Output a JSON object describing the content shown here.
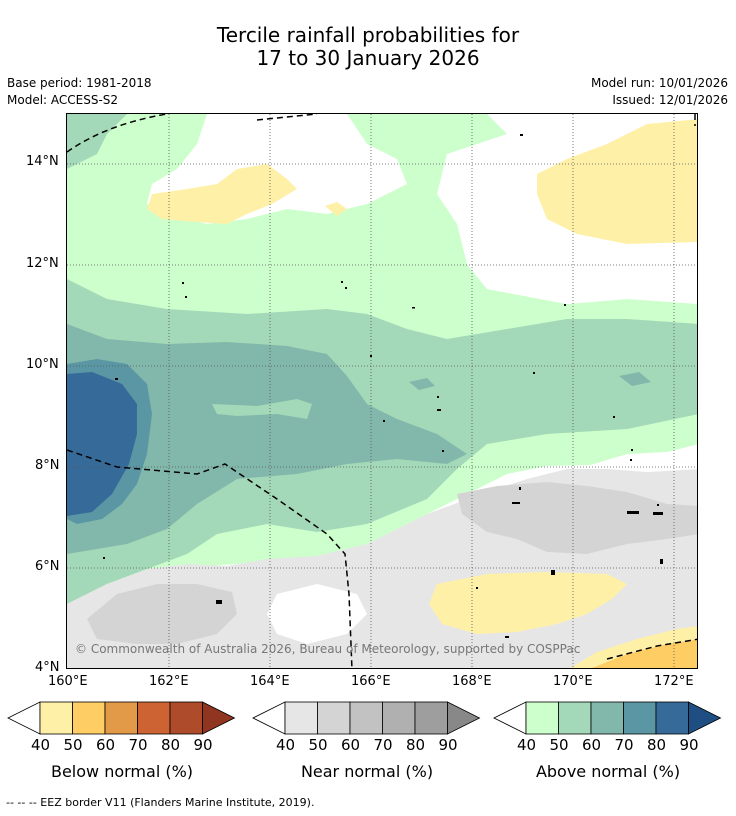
{
  "title": {
    "line1": "Tercile rainfall probabilities for",
    "line2": "17 to 30 January 2026"
  },
  "meta": {
    "base_period": "Base period: 1981-2018",
    "model": "Model: ACCESS-S2",
    "model_run": "Model run: 10/01/2026",
    "issued": "Issued: 12/01/2026"
  },
  "map": {
    "copyright": "© Commonwealth of Australia 2026, Bureau of Meteorology, supported by COSPPac",
    "lat_labels": [
      "14°N",
      "12°N",
      "10°N",
      "8°N",
      "6°N",
      "4°N"
    ],
    "lon_labels": [
      "160°E",
      "162°E",
      "164°E",
      "166°E",
      "168°E",
      "170°E",
      "172°E"
    ]
  },
  "colorbars": {
    "below": {
      "label": "Below normal (%)",
      "colors": [
        "#fff0a8",
        "#fece65",
        "#e39a48",
        "#cd6333",
        "#ad4b2a",
        "#8f3520"
      ],
      "ticks": [
        "40",
        "50",
        "60",
        "70",
        "80",
        "90"
      ]
    },
    "near": {
      "label": "Near normal (%)",
      "colors": [
        "#e6e6e6",
        "#d4d4d4",
        "#c2c2c2",
        "#b0b0b0",
        "#9e9e9e",
        "#888888"
      ],
      "ticks": [
        "40",
        "50",
        "60",
        "70",
        "80",
        "90"
      ]
    },
    "above": {
      "label": "Above normal (%)",
      "colors": [
        "#ccffcc",
        "#a3d9b8",
        "#82b8ab",
        "#5b96a4",
        "#356a99",
        "#1f4f82"
      ],
      "ticks": [
        "40",
        "50",
        "60",
        "70",
        "80",
        "90"
      ]
    }
  },
  "footer": "--  --  -- EEZ border V11 (Flanders Marine Institute, 2019)."
}
